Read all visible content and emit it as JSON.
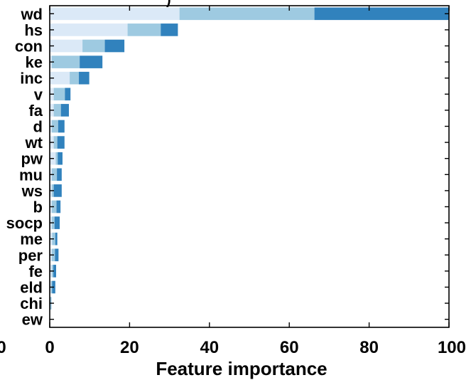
{
  "chart_data": {
    "type": "bar",
    "orientation": "horizontal",
    "stacked": true,
    "categories": [
      "wd",
      "hs",
      "con",
      "ke",
      "inc",
      "v",
      "fa",
      "d",
      "wt",
      "pw",
      "mu",
      "ws",
      "b",
      "socp",
      "me",
      "per",
      "fe",
      "eld",
      "chi",
      "ew"
    ],
    "series": [
      {
        "color": "#dbe9f7",
        "values": [
          32.5,
          19.5,
          8.2,
          0.5,
          5.0,
          1.0,
          1.0,
          0.5,
          1.0,
          1.5,
          0.5,
          0.5,
          0.5,
          0.5,
          0.6,
          0.5,
          0.5,
          0.3,
          0.1,
          0.0
        ]
      },
      {
        "color": "#9ecae1",
        "values": [
          33.8,
          8.3,
          5.6,
          7.0,
          2.3,
          2.8,
          1.8,
          1.6,
          0.9,
          0.5,
          1.3,
          0.5,
          1.2,
          0.7,
          0.8,
          0.8,
          0.4,
          0.3,
          0.2,
          0.0
        ]
      },
      {
        "color": "#3182bd",
        "values": [
          33.7,
          4.3,
          4.9,
          5.7,
          2.6,
          1.4,
          2.0,
          1.6,
          1.8,
          1.2,
          1.2,
          2.0,
          1.0,
          1.3,
          0.5,
          0.9,
          0.7,
          0.8,
          0.1,
          0.0
        ]
      }
    ],
    "xlabel": "Feature importance",
    "xticks": [
      "0",
      "20",
      "40",
      "60",
      "80",
      "100"
    ],
    "xlim": [
      0,
      100
    ],
    "grid": false
  },
  "clipped_labels": {
    "left_tick": "0",
    "title_fragment": ")"
  }
}
